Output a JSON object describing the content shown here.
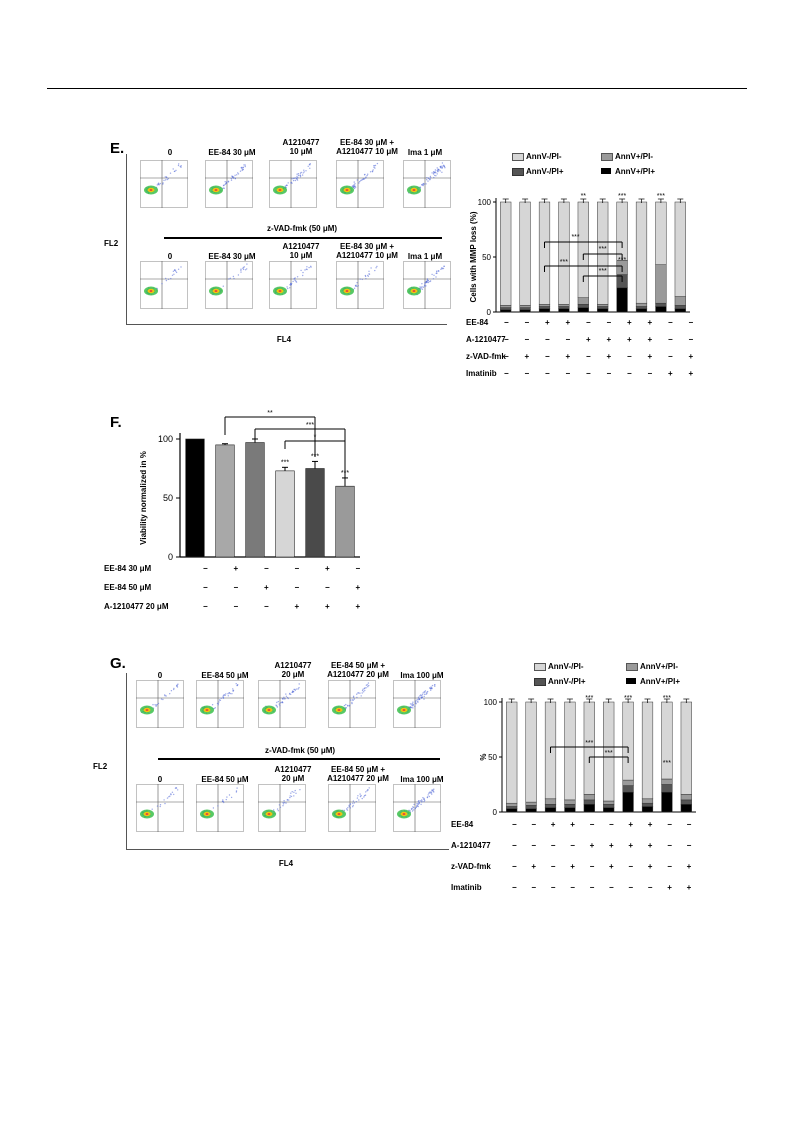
{
  "panels": {
    "E": {
      "letter": "E.",
      "flow": {
        "top_labels": [
          "0",
          "EE-84 30 μM",
          "A1210477\n10 μM",
          "EE-84 30 μM +\nA1210477  10 μM",
          "Ima  1 μM"
        ],
        "treatment_label": "z-VAD-fmk (50 μM)",
        "bottom_labels": [
          "0",
          "EE-84 30 μM",
          "A1210477\n10 μM",
          "EE-84 30 μM +\nA1210477  10 μM",
          "Ima  1 μM"
        ],
        "y_axis": "FL2",
        "x_axis": "FL4"
      },
      "chart_legend": [
        "AnnV-/PI-",
        "AnnV+/PI-",
        "AnnV-/PI+",
        "AnnV+/PI+"
      ],
      "condition_rows": [
        {
          "name": "EE-84",
          "signs": [
            "−",
            "−",
            "+",
            "+",
            "−",
            "−",
            "+",
            "+",
            "−",
            "−"
          ]
        },
        {
          "name": "A-1210477",
          "signs": [
            "−",
            "−",
            "−",
            "−",
            "+",
            "+",
            "+",
            "+",
            "−",
            "−"
          ]
        },
        {
          "name": "z-VAD-fmk",
          "signs": [
            "−",
            "+",
            "−",
            "+",
            "−",
            "+",
            "−",
            "+",
            "−",
            "+"
          ]
        },
        {
          "name": "Imatinib",
          "signs": [
            "−",
            "−",
            "−",
            "−",
            "−",
            "−",
            "−",
            "−",
            "+",
            "+"
          ]
        }
      ],
      "sig_markers": [
        "**",
        "***",
        "***",
        "***",
        "***",
        "***",
        "***",
        "***"
      ]
    },
    "F": {
      "letter": "F.",
      "condition_rows": [
        {
          "name": "EE-84 30 μM",
          "signs": [
            "−",
            "+",
            "−",
            "−",
            "+",
            "−"
          ]
        },
        {
          "name": "EE-84 50 μM",
          "signs": [
            "−",
            "−",
            "+",
            "−",
            "−",
            "+"
          ]
        },
        {
          "name": "A-1210477  20 μM",
          "signs": [
            "−",
            "−",
            "−",
            "+",
            "+",
            "+"
          ]
        }
      ],
      "sig_markers": [
        "**",
        "***",
        "*",
        "***",
        "***",
        "***"
      ]
    },
    "G": {
      "letter": "G.",
      "flow": {
        "top_labels": [
          "0",
          "EE-84 50 μM",
          "A1210477\n20 μM",
          "EE-84 50 μM +\nA1210477  20 μM",
          "Ima  100 μM"
        ],
        "treatment_label": "z-VAD-fmk (50 μM)",
        "bottom_labels": [
          "0",
          "EE-84 50 μM",
          "A1210477\n20 μM",
          "EE-84 50 μM +\nA1210477  20 μM",
          "Ima  100 μM"
        ],
        "y_axis": "FL2",
        "x_axis": "FL4"
      },
      "chart_legend": [
        "AnnV-/PI-",
        "AnnV+/PI-",
        "AnnV-/PI+",
        "AnnV+/PI+"
      ],
      "condition_rows": [
        {
          "name": "EE-84",
          "signs": [
            "−",
            "−",
            "+",
            "+",
            "−",
            "−",
            "+",
            "+",
            "−",
            "−"
          ]
        },
        {
          "name": "A-1210477",
          "signs": [
            "−",
            "−",
            "−",
            "−",
            "+",
            "+",
            "+",
            "+",
            "−",
            "−"
          ]
        },
        {
          "name": "z-VAD-fmk",
          "signs": [
            "−",
            "+",
            "−",
            "+",
            "−",
            "+",
            "−",
            "+",
            "−",
            "+"
          ]
        },
        {
          "name": "Imatinib",
          "signs": [
            "−",
            "−",
            "−",
            "−",
            "−",
            "−",
            "−",
            "−",
            "+",
            "+"
          ]
        }
      ],
      "sig_markers": [
        "***",
        "***",
        "***",
        "***",
        "***",
        "***"
      ]
    }
  },
  "chart_data": [
    {
      "type": "bar",
      "stacked": true,
      "panel": "E",
      "ylabel": "Cells with MMP loss (%)",
      "ylim": [
        0,
        100
      ],
      "yticks": [
        0,
        50,
        100
      ],
      "series": [
        {
          "name": "AnnV+/PI+",
          "color": "#000000",
          "values": [
            2,
            2,
            3,
            3,
            4,
            3,
            22,
            3,
            5,
            3
          ]
        },
        {
          "name": "AnnV-/PI+",
          "color": "#555555",
          "values": [
            2,
            2,
            2,
            2,
            3,
            2,
            12,
            2,
            3,
            3
          ]
        },
        {
          "name": "AnnV+/PI-",
          "color": "#9a9a9a",
          "values": [
            2,
            2,
            2,
            2,
            6,
            2,
            13,
            3,
            35,
            8
          ]
        },
        {
          "name": "AnnV-/PI-",
          "color": "#d6d6d6",
          "values": [
            94,
            94,
            93,
            93,
            87,
            93,
            53,
            92,
            57,
            86
          ]
        }
      ]
    },
    {
      "type": "bar",
      "panel": "F",
      "ylabel": "Viability normalized in %",
      "ylim": [
        0,
        100
      ],
      "yticks": [
        0,
        50,
        100
      ],
      "values": [
        100,
        95,
        97,
        73,
        75,
        60
      ],
      "errors": [
        0,
        1,
        3,
        3,
        6,
        7
      ],
      "colors": [
        "#000000",
        "#a8a8a8",
        "#7a7a7a",
        "#d6d6d6",
        "#4a4a4a",
        "#9a9a9a"
      ]
    },
    {
      "type": "bar",
      "stacked": true,
      "panel": "G",
      "ylabel": "%",
      "ylim": [
        0,
        100
      ],
      "yticks": [
        0,
        50,
        100
      ],
      "series": [
        {
          "name": "AnnV+/PI+",
          "color": "#000000",
          "values": [
            3,
            3,
            4,
            4,
            7,
            4,
            18,
            5,
            18,
            7
          ]
        },
        {
          "name": "AnnV-/PI+",
          "color": "#555555",
          "values": [
            2,
            3,
            3,
            3,
            4,
            3,
            6,
            3,
            7,
            4
          ]
        },
        {
          "name": "AnnV+/PI-",
          "color": "#9a9a9a",
          "values": [
            3,
            3,
            5,
            4,
            5,
            3,
            5,
            4,
            5,
            5
          ]
        },
        {
          "name": "AnnV-/PI-",
          "color": "#d6d6d6",
          "values": [
            92,
            91,
            88,
            89,
            84,
            90,
            71,
            88,
            70,
            84
          ]
        }
      ]
    }
  ]
}
